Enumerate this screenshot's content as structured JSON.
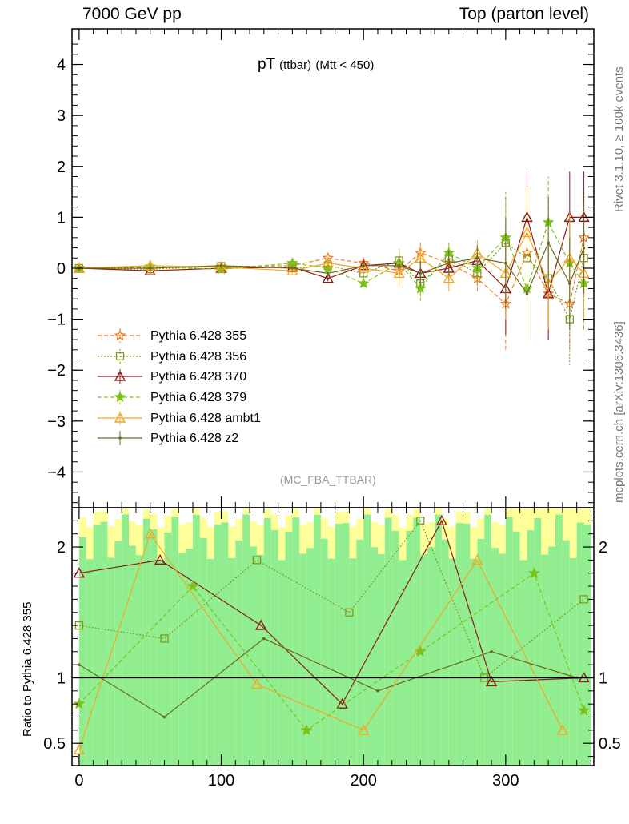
{
  "header": {
    "left": "7000 GeV pp",
    "right": "Top (parton level)"
  },
  "side_labels": {
    "rivet": "Rivet 3.1.10, ≥ 100k events",
    "mcplots": "mcplots.cern.ch [arXiv:1306.3436]"
  },
  "plot_title": {
    "main": "pT",
    "sub": "(ttbar)",
    "cut": "(Mtt < 450)"
  },
  "analysis": "(MC_FBA_TTBAR)",
  "ratio_ylabel": "Ratio to Pythia 6.428 355",
  "legend": [
    {
      "label": "Pythia 6.428 355",
      "color": "#f07a28",
      "marker": "star-open",
      "dash": "5,3"
    },
    {
      "label": "Pythia 6.428 356",
      "color": "#7f9b1e",
      "marker": "square-open",
      "dash": "2,2"
    },
    {
      "label": "Pythia 6.428 370",
      "color": "#8b1a1a",
      "marker": "triangle-open",
      "dash": ""
    },
    {
      "label": "Pythia 6.428 379",
      "color": "#7cc21a",
      "marker": "star-filled",
      "dash": "5,3"
    },
    {
      "label": "Pythia 6.428 ambt1",
      "color": "#f5a623",
      "marker": "triangle-open",
      "dash": ""
    },
    {
      "label": "Pythia 6.428 z2",
      "color": "#6b6b1e",
      "marker": "dot",
      "dash": ""
    }
  ],
  "chart_data": [
    {
      "type": "scatter",
      "panel": "main",
      "xlim": [
        -5,
        362
      ],
      "ylim": [
        -4.7,
        4.7
      ],
      "yticks": [
        -4,
        -3,
        -2,
        -1,
        0,
        1,
        2,
        3,
        4
      ],
      "ytick_labels": [
        "−4",
        "−3",
        "−2",
        "−1",
        "0",
        "1",
        "2",
        "3",
        "4"
      ],
      "series": [
        {
          "name": "Pythia 6.428 355",
          "x": [
            0,
            50,
            100,
            150,
            175,
            200,
            225,
            240,
            260,
            280,
            300,
            315,
            330,
            345,
            355
          ],
          "y": [
            0.0,
            0.02,
            0.03,
            0.05,
            0.2,
            0.1,
            -0.05,
            0.3,
            0.1,
            -0.2,
            -0.7,
            0.3,
            -0.5,
            -0.7,
            0.6
          ]
        },
        {
          "name": "Pythia 6.428 356",
          "x": [
            0,
            50,
            100,
            150,
            175,
            200,
            225,
            240,
            260,
            280,
            300,
            315,
            330,
            345,
            355
          ],
          "y": [
            0.0,
            -0.02,
            0.04,
            0.0,
            0.05,
            -0.1,
            0.15,
            -0.3,
            0.2,
            -0.1,
            0.5,
            0.2,
            -0.2,
            -1.0,
            0.2
          ]
        },
        {
          "name": "Pythia 6.428 370",
          "x": [
            0,
            50,
            100,
            150,
            175,
            200,
            225,
            240,
            260,
            280,
            300,
            315,
            330,
            345,
            355
          ],
          "y": [
            0.0,
            -0.05,
            0.0,
            0.02,
            -0.2,
            0.05,
            0.1,
            -0.1,
            0.0,
            0.15,
            -0.4,
            1.0,
            -0.5,
            1.0,
            1.0
          ]
        },
        {
          "name": "Pythia 6.428 379",
          "x": [
            0,
            50,
            100,
            150,
            175,
            200,
            225,
            240,
            260,
            280,
            300,
            315,
            330,
            345,
            355
          ],
          "y": [
            0.0,
            0.03,
            -0.02,
            0.1,
            0.0,
            -0.3,
            0.1,
            -0.4,
            0.3,
            0.0,
            0.6,
            -0.4,
            0.9,
            0.1,
            -0.3
          ]
        },
        {
          "name": "Pythia 6.428 ambt1",
          "x": [
            0,
            50,
            100,
            150,
            175,
            200,
            225,
            240,
            260,
            280,
            300,
            315,
            330,
            345,
            355
          ],
          "y": [
            0.0,
            0.05,
            0.02,
            -0.05,
            0.1,
            0.0,
            -0.1,
            0.2,
            -0.2,
            0.3,
            -0.1,
            0.7,
            -0.3,
            0.2,
            -0.1
          ]
        },
        {
          "name": "Pythia 6.428 z2",
          "x": [
            0,
            50,
            100,
            150,
            175,
            200,
            225,
            240,
            260,
            280,
            300,
            315,
            330,
            345,
            355
          ],
          "y": [
            0.0,
            0.0,
            0.05,
            0.0,
            -0.1,
            0.05,
            0.05,
            -0.1,
            0.1,
            0.2,
            0.1,
            -0.5,
            0.5,
            -0.3,
            0.4
          ]
        }
      ]
    },
    {
      "type": "line",
      "panel": "ratio",
      "xlim": [
        -5,
        362
      ],
      "ylim": [
        0.33,
        2.3
      ],
      "yticks": [
        0.5,
        1,
        2
      ],
      "ytick_labels": [
        "0.5",
        "1",
        "2"
      ],
      "xticks": [
        0,
        100,
        200,
        300
      ],
      "xtick_labels": [
        "0",
        "100",
        "200",
        "300"
      ],
      "reference": 1,
      "band_colors": {
        "outer": "#ffff99",
        "inner": "#90ee90"
      },
      "series": [
        {
          "name": "Pythia 6.428 356",
          "x": [
            0,
            60,
            125,
            190,
            240,
            285,
            355
          ],
          "y": [
            1.4,
            1.3,
            1.9,
            1.5,
            2.2,
            1.0,
            1.6
          ]
        },
        {
          "name": "Pythia 6.428 370",
          "x": [
            0,
            57,
            128,
            185,
            255,
            290,
            355
          ],
          "y": [
            1.8,
            1.9,
            1.4,
            0.8,
            2.2,
            0.97,
            1.0
          ]
        },
        {
          "name": "Pythia 6.428 379",
          "x": [
            0,
            80,
            160,
            240,
            320,
            355
          ],
          "y": [
            0.8,
            1.7,
            0.6,
            1.2,
            1.8,
            0.75
          ]
        },
        {
          "name": "Pythia 6.428 ambt1",
          "x": [
            0,
            50,
            125,
            200,
            280,
            340
          ],
          "y": [
            0.45,
            2.1,
            0.95,
            0.6,
            1.9,
            0.6
          ]
        },
        {
          "name": "Pythia 6.428 z2",
          "x": [
            0,
            60,
            130,
            210,
            290,
            350
          ],
          "y": [
            1.1,
            0.7,
            1.3,
            0.9,
            1.2,
            1.0
          ]
        }
      ]
    }
  ]
}
